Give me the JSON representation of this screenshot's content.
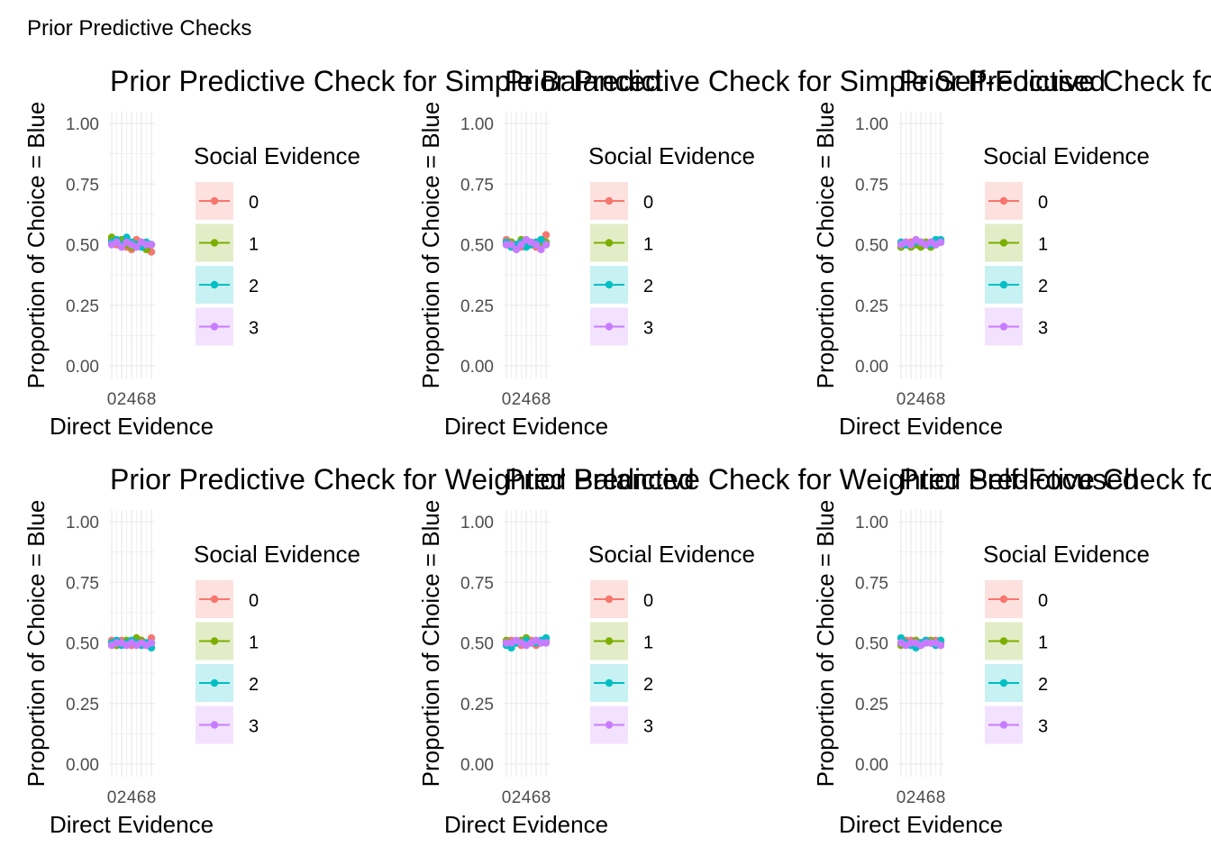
{
  "figure": {
    "title": "Prior Predictive Checks"
  },
  "colors": {
    "social_0": "#F8766D",
    "social_1": "#7CAE00",
    "social_2": "#00BFC4",
    "social_3": "#C77CFF",
    "grid": "#EBEBEB",
    "tick_text": "#4D4D4D"
  },
  "chart_data": [
    {
      "type": "line",
      "title": "Prior Predictive Check for Simple Balanced",
      "xlabel": "Direct Evidence",
      "ylabel": "Proportion of Choice = Blue",
      "x": [
        0,
        1,
        2,
        3,
        4,
        5,
        6,
        7,
        8
      ],
      "x_tick_labels": [
        "0",
        "2",
        "4",
        "6",
        "8"
      ],
      "ylim": [
        0,
        1
      ],
      "y_ticks": [
        "0.00",
        "0.25",
        "0.50",
        "0.75",
        "1.00"
      ],
      "grid": true,
      "legend": {
        "title": "Social Evidence",
        "position": "right",
        "labels": [
          "0",
          "1",
          "2",
          "3"
        ]
      },
      "series": [
        {
          "name": "0",
          "values": [
            0.52,
            0.5,
            0.51,
            0.49,
            0.48,
            0.52,
            0.51,
            0.49,
            0.47
          ]
        },
        {
          "name": "1",
          "values": [
            0.53,
            0.51,
            0.52,
            0.5,
            0.49,
            0.5,
            0.51,
            0.48,
            0.5
          ]
        },
        {
          "name": "2",
          "values": [
            0.51,
            0.52,
            0.5,
            0.53,
            0.51,
            0.5,
            0.49,
            0.51,
            0.5
          ]
        },
        {
          "name": "3",
          "values": [
            0.5,
            0.51,
            0.49,
            0.51,
            0.5,
            0.49,
            0.51,
            0.5,
            0.5
          ]
        }
      ]
    },
    {
      "type": "line",
      "title": "Prior Predictive Check for Simple Self-Focused",
      "xlabel": "Direct Evidence",
      "ylabel": "Proportion of Choice = Blue",
      "x": [
        0,
        1,
        2,
        3,
        4,
        5,
        6,
        7,
        8
      ],
      "x_tick_labels": [
        "0",
        "2",
        "4",
        "6",
        "8"
      ],
      "ylim": [
        0,
        1
      ],
      "y_ticks": [
        "0.00",
        "0.25",
        "0.50",
        "0.75",
        "1.00"
      ],
      "grid": true,
      "legend": {
        "title": "Social Evidence",
        "position": "right",
        "labels": [
          "0",
          "1",
          "2",
          "3"
        ]
      },
      "series": [
        {
          "name": "0",
          "values": [
            0.52,
            0.51,
            0.5,
            0.49,
            0.51,
            0.5,
            0.49,
            0.52,
            0.54
          ]
        },
        {
          "name": "1",
          "values": [
            0.5,
            0.51,
            0.5,
            0.52,
            0.51,
            0.5,
            0.51,
            0.5,
            0.51
          ]
        },
        {
          "name": "2",
          "values": [
            0.51,
            0.49,
            0.5,
            0.51,
            0.49,
            0.5,
            0.51,
            0.52,
            0.5
          ]
        },
        {
          "name": "3",
          "values": [
            0.5,
            0.5,
            0.48,
            0.5,
            0.52,
            0.51,
            0.5,
            0.48,
            0.5
          ]
        }
      ]
    },
    {
      "type": "line",
      "title": "Prior Predictive Check for Simple Socially Focused",
      "xlabel": "Direct Evidence",
      "ylabel": "Proportion of Choice = Blue",
      "x": [
        0,
        1,
        2,
        3,
        4,
        5,
        6,
        7,
        8
      ],
      "x_tick_labels": [
        "0",
        "2",
        "4",
        "6",
        "8"
      ],
      "ylim": [
        0,
        1
      ],
      "y_ticks": [
        "0.00",
        "0.25",
        "0.50",
        "0.75",
        "1.00"
      ],
      "grid": true,
      "legend": {
        "title": "Social Evidence",
        "position": "right",
        "labels": [
          "0",
          "1",
          "2",
          "3"
        ]
      },
      "series": [
        {
          "name": "0",
          "values": [
            0.5,
            0.51,
            0.51,
            0.5,
            0.51,
            0.5,
            0.51,
            0.5,
            0.51
          ]
        },
        {
          "name": "1",
          "values": [
            0.49,
            0.5,
            0.49,
            0.5,
            0.49,
            0.51,
            0.49,
            0.5,
            0.51
          ]
        },
        {
          "name": "2",
          "values": [
            0.51,
            0.5,
            0.5,
            0.51,
            0.51,
            0.5,
            0.5,
            0.52,
            0.52
          ]
        },
        {
          "name": "3",
          "values": [
            0.5,
            0.51,
            0.5,
            0.52,
            0.51,
            0.5,
            0.51,
            0.5,
            0.51
          ]
        }
      ]
    },
    {
      "type": "line",
      "title": "Prior Predictive Check for Weighted Balanced",
      "xlabel": "Direct Evidence",
      "ylabel": "Proportion of Choice = Blue",
      "x": [
        0,
        1,
        2,
        3,
        4,
        5,
        6,
        7,
        8
      ],
      "x_tick_labels": [
        "0",
        "2",
        "4",
        "6",
        "8"
      ],
      "ylim": [
        0,
        1
      ],
      "y_ticks": [
        "0.00",
        "0.25",
        "0.50",
        "0.75",
        "1.00"
      ],
      "grid": true,
      "legend": {
        "title": "Social Evidence",
        "position": "right",
        "labels": [
          "0",
          "1",
          "2",
          "3"
        ]
      },
      "series": [
        {
          "name": "0",
          "values": [
            0.51,
            0.5,
            0.51,
            0.5,
            0.49,
            0.5,
            0.51,
            0.49,
            0.52
          ]
        },
        {
          "name": "1",
          "values": [
            0.5,
            0.49,
            0.5,
            0.51,
            0.5,
            0.52,
            0.51,
            0.5,
            0.5
          ]
        },
        {
          "name": "2",
          "values": [
            0.5,
            0.51,
            0.49,
            0.5,
            0.51,
            0.5,
            0.49,
            0.5,
            0.48
          ]
        },
        {
          "name": "3",
          "values": [
            0.49,
            0.5,
            0.5,
            0.49,
            0.5,
            0.49,
            0.5,
            0.49,
            0.5
          ]
        }
      ]
    },
    {
      "type": "line",
      "title": "Prior Predictive Check for Weighted Self-Focused",
      "xlabel": "Direct Evidence",
      "ylabel": "Proportion of Choice = Blue",
      "x": [
        0,
        1,
        2,
        3,
        4,
        5,
        6,
        7,
        8
      ],
      "x_tick_labels": [
        "0",
        "2",
        "4",
        "6",
        "8"
      ],
      "ylim": [
        0,
        1
      ],
      "y_ticks": [
        "0.00",
        "0.25",
        "0.50",
        "0.75",
        "1.00"
      ],
      "grid": true,
      "legend": {
        "title": "Social Evidence",
        "position": "right",
        "labels": [
          "0",
          "1",
          "2",
          "3"
        ]
      },
      "series": [
        {
          "name": "0",
          "values": [
            0.5,
            0.51,
            0.5,
            0.49,
            0.5,
            0.51,
            0.49,
            0.5,
            0.51
          ]
        },
        {
          "name": "1",
          "values": [
            0.51,
            0.5,
            0.5,
            0.51,
            0.52,
            0.5,
            0.51,
            0.5,
            0.5
          ]
        },
        {
          "name": "2",
          "values": [
            0.49,
            0.48,
            0.5,
            0.5,
            0.51,
            0.5,
            0.5,
            0.51,
            0.52
          ]
        },
        {
          "name": "3",
          "values": [
            0.5,
            0.5,
            0.51,
            0.5,
            0.49,
            0.5,
            0.51,
            0.5,
            0.5
          ]
        }
      ]
    },
    {
      "type": "line",
      "title": "Prior Predictive Check for Weighted Socially Focused",
      "xlabel": "Direct Evidence",
      "ylabel": "Proportion of Choice = Blue",
      "x": [
        0,
        1,
        2,
        3,
        4,
        5,
        6,
        7,
        8
      ],
      "x_tick_labels": [
        "0",
        "2",
        "4",
        "6",
        "8"
      ],
      "ylim": [
        0,
        1
      ],
      "y_ticks": [
        "0.00",
        "0.25",
        "0.50",
        "0.75",
        "1.00"
      ],
      "grid": true,
      "legend": {
        "title": "Social Evidence",
        "position": "right",
        "labels": [
          "0",
          "1",
          "2",
          "3"
        ]
      },
      "series": [
        {
          "name": "0",
          "values": [
            0.5,
            0.51,
            0.51,
            0.5,
            0.49,
            0.51,
            0.5,
            0.51,
            0.5
          ]
        },
        {
          "name": "1",
          "values": [
            0.49,
            0.5,
            0.5,
            0.51,
            0.5,
            0.5,
            0.51,
            0.5,
            0.51
          ]
        },
        {
          "name": "2",
          "values": [
            0.52,
            0.5,
            0.49,
            0.48,
            0.5,
            0.51,
            0.5,
            0.49,
            0.51
          ]
        },
        {
          "name": "3",
          "values": [
            0.5,
            0.49,
            0.5,
            0.5,
            0.49,
            0.5,
            0.5,
            0.5,
            0.49
          ]
        }
      ]
    }
  ]
}
